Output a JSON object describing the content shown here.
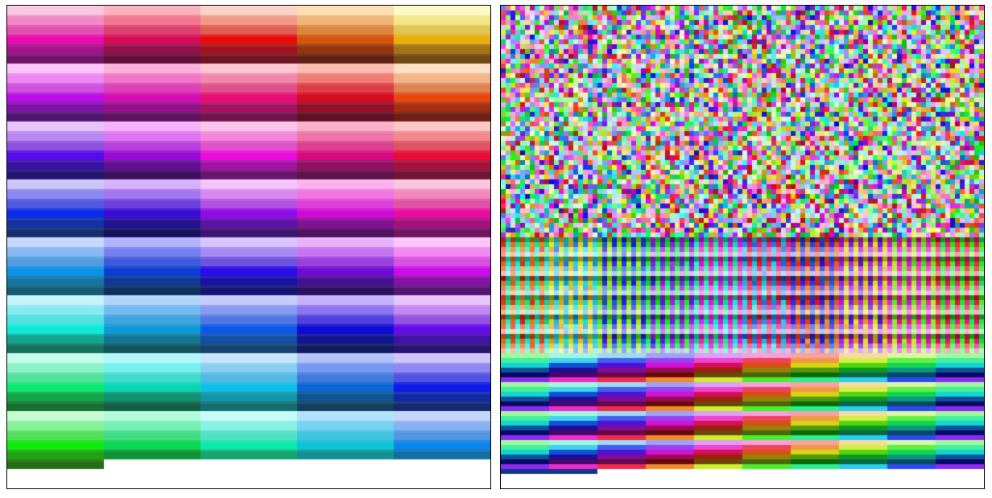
{
  "figure": {
    "panels": [
      {
        "id": "sorted-palette",
        "description_kind": "hue-sorted color swatch grid",
        "columns": 5,
        "rows_per_column": 48
      },
      {
        "id": "scrambled-palette",
        "description_kind": "pixelated scrambled color swatch grid",
        "block_columns": 10,
        "block_rows": 4
      }
    ],
    "colors": {
      "background": "#ffffff",
      "border": "#000000"
    }
  }
}
